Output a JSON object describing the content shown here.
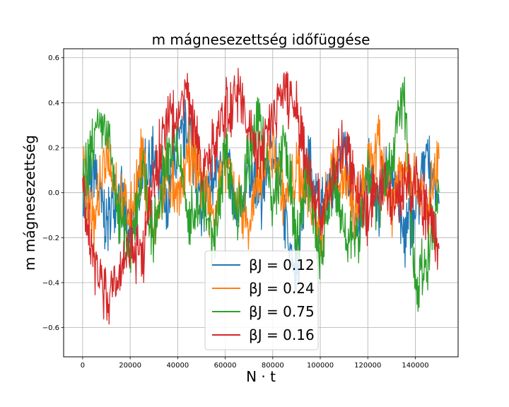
{
  "chart_data": {
    "type": "line",
    "title": "m mágnesezettség időfüggése",
    "xlabel": "N · t",
    "ylabel": "m mágnesezettség",
    "xlim": [
      -8000,
      158000
    ],
    "ylim": [
      -0.73,
      0.64
    ],
    "xticks": [
      0,
      20000,
      40000,
      60000,
      80000,
      100000,
      120000,
      140000
    ],
    "xtick_labels": [
      "0",
      "20000",
      "40000",
      "60000",
      "80000",
      "100000",
      "120000",
      "140000"
    ],
    "yticks": [
      -0.6,
      -0.4,
      -0.2,
      0.0,
      0.2,
      0.4,
      0.6
    ],
    "ytick_labels": [
      "−0.6",
      "−0.4",
      "−0.2",
      "0.0",
      "0.2",
      "0.4",
      "0.6"
    ],
    "grid": true,
    "legend_position": "lower-center",
    "series": [
      {
        "name": "βJ = 0.12",
        "color": "#1f77b4",
        "x": [
          0,
          5000,
          10000,
          15000,
          20000,
          25000,
          30000,
          35000,
          40000,
          45000,
          50000,
          55000,
          60000,
          65000,
          70000,
          75000,
          80000,
          85000,
          90000,
          95000,
          100000,
          105000,
          110000,
          115000,
          120000,
          125000,
          130000,
          135000,
          140000,
          145000,
          150000
        ],
        "values": [
          -0.05,
          0.1,
          -0.15,
          0.05,
          -0.2,
          0.1,
          0.15,
          -0.1,
          0.2,
          0.3,
          -0.1,
          0.05,
          0.2,
          -0.15,
          0.1,
          -0.05,
          0.25,
          -0.1,
          -0.35,
          0.15,
          -0.1,
          0.05,
          0.2,
          -0.15,
          0.1,
          -0.05,
          0.15,
          -0.2,
          -0.1,
          0.2,
          -0.05
        ]
      },
      {
        "name": "βJ = 0.24",
        "color": "#ff7f0e",
        "x": [
          0,
          5000,
          10000,
          15000,
          20000,
          25000,
          30000,
          35000,
          40000,
          45000,
          50000,
          55000,
          60000,
          65000,
          70000,
          75000,
          80000,
          85000,
          90000,
          95000,
          100000,
          105000,
          110000,
          115000,
          120000,
          125000,
          130000,
          135000,
          140000,
          145000,
          150000
        ],
        "values": [
          0.1,
          -0.15,
          0.2,
          0.0,
          -0.1,
          0.15,
          -0.2,
          0.1,
          -0.05,
          0.2,
          0.05,
          -0.1,
          0.15,
          0.0,
          -0.15,
          0.1,
          0.2,
          -0.05,
          0.1,
          0.0,
          -0.2,
          0.15,
          0.05,
          -0.1,
          0.1,
          0.2,
          -0.05,
          0.15,
          0.05,
          -0.1,
          0.15
        ]
      },
      {
        "name": "βJ = 0.75",
        "color": "#2ca02c",
        "x": [
          0,
          5000,
          10000,
          15000,
          20000,
          25000,
          30000,
          35000,
          40000,
          45000,
          50000,
          55000,
          60000,
          65000,
          70000,
          75000,
          80000,
          85000,
          90000,
          95000,
          100000,
          105000,
          110000,
          115000,
          120000,
          125000,
          130000,
          135000,
          140000,
          145000,
          150000
        ],
        "values": [
          0.0,
          0.25,
          0.3,
          -0.1,
          -0.25,
          0.1,
          -0.2,
          0.15,
          0.2,
          -0.15,
          0.0,
          -0.25,
          0.2,
          -0.1,
          0.15,
          0.35,
          -0.1,
          0.25,
          -0.25,
          0.1,
          -0.3,
          0.05,
          -0.15,
          -0.25,
          0.1,
          -0.05,
          0.15,
          0.45,
          -0.4,
          -0.3,
          0.0
        ]
      },
      {
        "name": "βJ = 0.16",
        "color": "#d62728",
        "x": [
          0,
          5000,
          10000,
          15000,
          20000,
          25000,
          30000,
          35000,
          40000,
          45000,
          50000,
          55000,
          60000,
          65000,
          70000,
          75000,
          80000,
          85000,
          90000,
          95000,
          100000,
          105000,
          110000,
          115000,
          120000,
          125000,
          130000,
          135000,
          140000,
          145000,
          150000
        ],
        "values": [
          0.0,
          -0.3,
          -0.45,
          -0.35,
          -0.2,
          -0.3,
          0.05,
          0.3,
          0.35,
          0.45,
          0.1,
          0.2,
          0.35,
          0.45,
          0.3,
          0.15,
          0.35,
          0.48,
          0.35,
          0.1,
          -0.1,
          0.05,
          0.2,
          0.05,
          -0.1,
          0.05,
          -0.05,
          0.0,
          0.05,
          -0.1,
          -0.25
        ]
      }
    ]
  }
}
